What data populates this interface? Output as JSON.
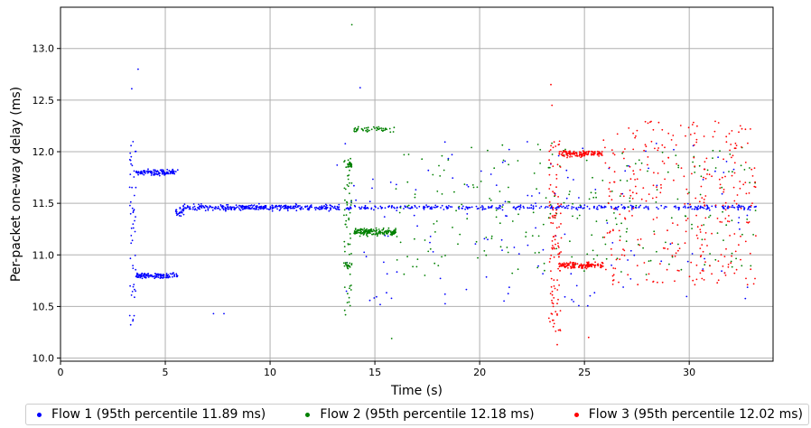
{
  "chart_data": {
    "type": "scatter",
    "xlabel": "Time (s)",
    "ylabel": "Per-packet one-way delay (ms)",
    "xlim": [
      0,
      34
    ],
    "ylim": [
      9.97,
      13.4
    ],
    "x_ticks": [
      0,
      5,
      10,
      15,
      20,
      25,
      30
    ],
    "y_ticks": [
      10.0,
      10.5,
      11.0,
      11.5,
      12.0,
      12.5,
      13.0
    ],
    "x_tick_labels": [
      "0",
      "5",
      "10",
      "15",
      "20",
      "25",
      "30"
    ],
    "y_tick_labels": [
      "10.0",
      "10.5",
      "11.0",
      "11.5",
      "12.0",
      "12.5",
      "13.0"
    ],
    "grid": true,
    "legend_position": "bottom",
    "series": [
      {
        "name": "Flow 1 (95th percentile 11.89 ms)",
        "color": "#0000ff",
        "clusters": [
          {
            "x_range": [
              3.3,
              3.6
            ],
            "y_center": 11.2,
            "y_spread": 0.9,
            "count": 50
          },
          {
            "x_range": [
              3.6,
              5.6
            ],
            "y_center": 11.8,
            "y_spread": 0.04,
            "count": 120
          },
          {
            "x_range": [
              3.6,
              5.6
            ],
            "y_center": 10.8,
            "y_spread": 0.04,
            "count": 120
          },
          {
            "x_range": [
              5.5,
              5.9
            ],
            "y_center": 11.42,
            "y_spread": 0.06,
            "count": 25
          },
          {
            "x_range": [
              5.8,
              13.3
            ],
            "y_center": 11.46,
            "y_spread": 0.04,
            "count": 320
          },
          {
            "x_range": [
              13.5,
              33.2
            ],
            "y_center": 11.46,
            "y_spread": 0.03,
            "count": 340
          },
          {
            "x_range": [
              13.5,
              33.2
            ],
            "y_center": 11.3,
            "y_spread": 0.8,
            "count": 140
          }
        ],
        "outliers": [
          [
            3.7,
            12.8
          ],
          [
            3.4,
            12.61
          ],
          [
            3.45,
            10.36
          ],
          [
            7.3,
            10.43
          ],
          [
            7.8,
            10.43
          ],
          [
            13.2,
            11.87
          ],
          [
            14.3,
            12.62
          ]
        ]
      },
      {
        "name": "Flow 2 (95th percentile 12.18 ms)",
        "color": "#008000",
        "clusters": [
          {
            "x_range": [
              13.5,
              13.9
            ],
            "y_center": 11.2,
            "y_spread": 0.75,
            "count": 60
          },
          {
            "x_range": [
              13.7,
              13.9
            ],
            "y_center": 11.87,
            "y_spread": 0.04,
            "count": 25
          },
          {
            "x_range": [
              13.6,
              13.9
            ],
            "y_center": 10.9,
            "y_spread": 0.05,
            "count": 20
          },
          {
            "x_range": [
              14.0,
              16.0
            ],
            "y_center": 11.22,
            "y_spread": 0.05,
            "count": 170
          },
          {
            "x_range": [
              14.0,
              16.0
            ],
            "y_center": 12.22,
            "y_spread": 0.04,
            "count": 50
          },
          {
            "x_range": [
              16.0,
              33.2
            ],
            "y_center": 11.45,
            "y_spread": 0.65,
            "count": 240
          }
        ],
        "outliers": [
          [
            13.9,
            13.23
          ],
          [
            15.8,
            10.19
          ],
          [
            13.6,
            10.42
          ],
          [
            18.5,
            11.92
          ]
        ]
      },
      {
        "name": "Flow 3 (95th percentile 12.02 ms)",
        "color": "#ff0000",
        "clusters": [
          {
            "x_range": [
              23.3,
              23.9
            ],
            "y_center": 11.2,
            "y_spread": 0.95,
            "count": 110
          },
          {
            "x_range": [
              23.8,
              25.9
            ],
            "y_center": 11.98,
            "y_spread": 0.04,
            "count": 130
          },
          {
            "x_range": [
              23.8,
              25.9
            ],
            "y_center": 10.9,
            "y_spread": 0.04,
            "count": 130
          },
          {
            "x_range": [
              25.9,
              33.2
            ],
            "y_center": 11.5,
            "y_spread": 0.8,
            "count": 320
          }
        ],
        "outliers": [
          [
            23.4,
            12.65
          ],
          [
            23.7,
            10.13
          ],
          [
            25.2,
            10.2
          ],
          [
            23.45,
            12.45
          ]
        ]
      }
    ]
  }
}
